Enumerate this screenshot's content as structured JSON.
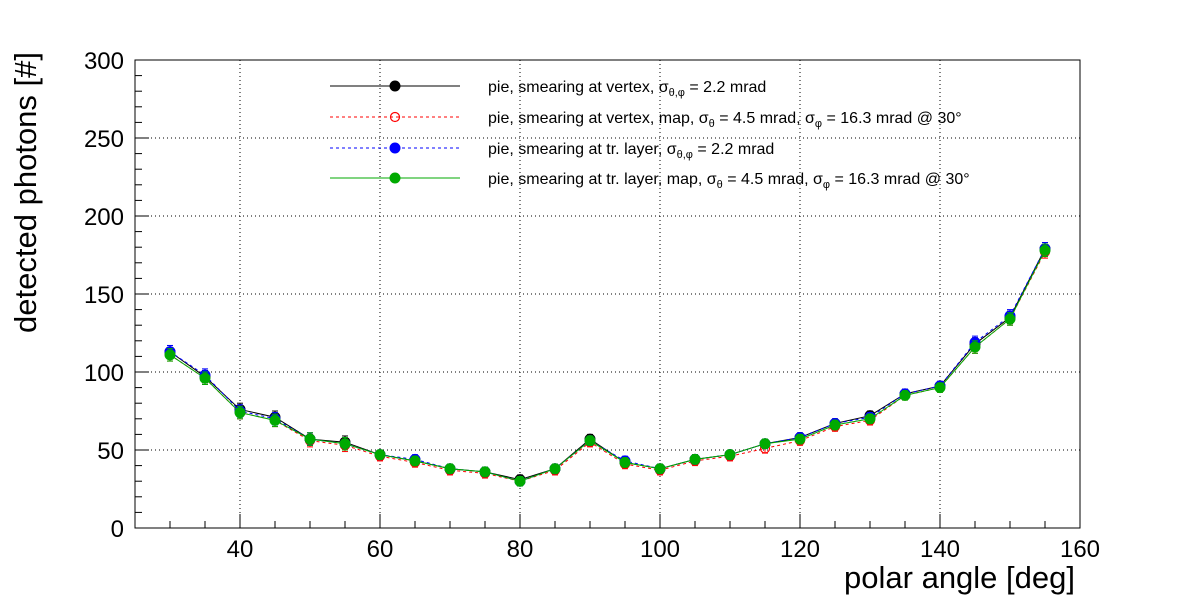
{
  "chart_data": {
    "type": "scatter",
    "xlabel": "polar angle [deg]",
    "ylabel": "detected photons [#]",
    "xlim": [
      25,
      160
    ],
    "ylim": [
      0,
      300
    ],
    "x_ticks": [
      40,
      60,
      80,
      100,
      120,
      140,
      160
    ],
    "y_ticks": [
      0,
      50,
      100,
      150,
      200,
      250,
      300
    ],
    "grid": true,
    "legend_position": "top",
    "x": [
      30,
      35,
      40,
      45,
      50,
      55,
      60,
      65,
      70,
      75,
      80,
      85,
      90,
      95,
      100,
      105,
      110,
      115,
      120,
      125,
      130,
      135,
      140,
      145,
      150,
      155
    ],
    "series": [
      {
        "legend": "pie, smearing at vertex, σθ,φ = 2.2 mrad",
        "legend_main": "pie, smearing at vertex, σ",
        "legend_sub": "θ,φ",
        "legend_tail": " = 2.2 mrad",
        "color": "#000000",
        "marker": "filled-circle",
        "line": "solid",
        "values": [
          113,
          97,
          76,
          71,
          57,
          55,
          47,
          43,
          38,
          36,
          31,
          38,
          57,
          42,
          38,
          44,
          47,
          54,
          58,
          67,
          72,
          86,
          91,
          118,
          135,
          179
        ]
      },
      {
        "legend": "pie, smearing at vertex, map, σθ = 4.5 mrad, σφ = 16.3 mrad @ 30°",
        "legend_main": "pie, smearing at vertex, map, σ",
        "legend_sub": "θ",
        "legend_mid": " = 4.5 mrad,  σ",
        "legend_sub2": "φ",
        "legend_tail": " = 16.3 mrad @ 30°",
        "color": "#ff0000",
        "marker": "open-circle",
        "line": "dashed",
        "values": [
          111,
          96,
          74,
          69,
          56,
          53,
          46,
          42,
          37,
          35,
          30,
          37,
          55,
          41,
          37,
          43,
          46,
          51,
          56,
          65,
          69,
          85,
          90,
          116,
          134,
          177
        ]
      },
      {
        "legend": "pie, smearing at tr. layer, σθ,φ = 2.2 mrad",
        "legend_main": "pie, smearing at tr. layer, σ",
        "legend_sub": "θ,φ",
        "legend_tail": " = 2.2 mrad",
        "color": "#0000ff",
        "marker": "filled-circle",
        "line": "dashed",
        "values": [
          113,
          98,
          75,
          70,
          57,
          54,
          47,
          44,
          38,
          36,
          30,
          38,
          56,
          43,
          38,
          44,
          47,
          54,
          58,
          67,
          71,
          86,
          91,
          119,
          136,
          179
        ]
      },
      {
        "legend": "pie, smearing at tr. layer, map, σθ = 4.5 mrad, σφ = 16.3 mrad @ 30°",
        "legend_main": "pie, smearing at tr. layer, map, σ",
        "legend_sub": "θ",
        "legend_mid": " = 4.5 mrad,  σ",
        "legend_sub2": "φ",
        "legend_tail": " = 16.3 mrad @ 30°",
        "color": "#00aa00",
        "marker": "filled-circle",
        "line": "solid",
        "values": [
          111,
          96,
          74,
          69,
          57,
          54,
          47,
          43,
          38,
          36,
          30,
          38,
          56,
          42,
          38,
          44,
          47,
          54,
          57,
          66,
          70,
          85,
          90,
          116,
          134,
          178
        ]
      }
    ],
    "error": [
      4,
      4,
      4,
      4,
      4,
      4,
      3,
      3,
      3,
      3,
      3,
      3,
      3,
      3,
      3,
      3,
      3,
      3,
      3,
      3,
      3,
      3,
      3,
      4,
      4,
      4
    ]
  }
}
